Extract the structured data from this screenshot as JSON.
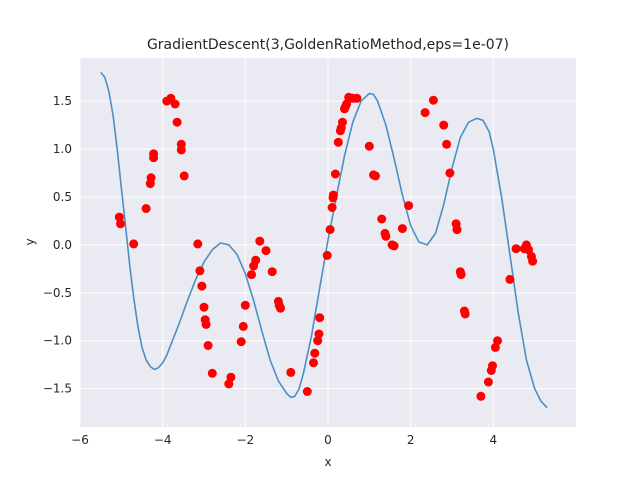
{
  "chart_data": {
    "type": "scatter",
    "title": "GradientDescent(3,GoldenRatioMethod,eps=1e-07)",
    "xlabel": "x",
    "ylabel": "y",
    "xlim": [
      -6,
      6
    ],
    "ylim": [
      -1.9,
      1.95
    ],
    "xticks": [
      -6,
      -4,
      -2,
      0,
      2,
      4
    ],
    "yticks": [
      -1.5,
      -1.0,
      -0.5,
      0.0,
      0.5,
      1.0,
      1.5
    ],
    "xtick_labels": [
      "−6",
      "−4",
      "−2",
      "0",
      "2",
      "4"
    ],
    "ytick_labels": [
      "−1.5",
      "−1.0",
      "−0.5",
      "0.0",
      "0.5",
      "1.0",
      "1.5"
    ],
    "grid": true,
    "background": "#eaeaf2",
    "series": [
      {
        "kind": "points",
        "color": "#ff0000",
        "points": [
          [
            -5.05,
            0.29
          ],
          [
            -5.02,
            0.22
          ],
          [
            -4.7,
            0.01
          ],
          [
            -4.4,
            0.38
          ],
          [
            -4.3,
            0.64
          ],
          [
            -4.28,
            0.7
          ],
          [
            -4.22,
            0.91
          ],
          [
            -4.22,
            0.95
          ],
          [
            -3.9,
            1.5
          ],
          [
            -3.8,
            1.53
          ],
          [
            -3.7,
            1.47
          ],
          [
            -3.65,
            1.28
          ],
          [
            -3.55,
            1.05
          ],
          [
            -3.55,
            0.99
          ],
          [
            -3.48,
            0.72
          ],
          [
            -3.15,
            0.01
          ],
          [
            -3.1,
            -0.27
          ],
          [
            -3.05,
            -0.43
          ],
          [
            -3.0,
            -0.65
          ],
          [
            -2.97,
            -0.78
          ],
          [
            -2.95,
            -0.83
          ],
          [
            -2.9,
            -1.05
          ],
          [
            -2.8,
            -1.34
          ],
          [
            -2.4,
            -1.45
          ],
          [
            -2.35,
            -1.38
          ],
          [
            -2.1,
            -1.01
          ],
          [
            -2.05,
            -0.85
          ],
          [
            -2.0,
            -0.63
          ],
          [
            -1.85,
            -0.31
          ],
          [
            -1.8,
            -0.22
          ],
          [
            -1.75,
            -0.16
          ],
          [
            -1.65,
            0.04
          ],
          [
            -1.5,
            -0.06
          ],
          [
            -1.35,
            -0.28
          ],
          [
            -1.2,
            -0.59
          ],
          [
            -1.18,
            -0.63
          ],
          [
            -1.15,
            -0.66
          ],
          [
            -0.9,
            -1.33
          ],
          [
            -0.5,
            -1.53
          ],
          [
            -0.35,
            -1.23
          ],
          [
            -0.32,
            -1.13
          ],
          [
            -0.25,
            -1.0
          ],
          [
            -0.22,
            -0.93
          ],
          [
            -0.2,
            -0.76
          ],
          [
            -0.02,
            -0.11
          ],
          [
            0.05,
            0.16
          ],
          [
            0.1,
            0.39
          ],
          [
            0.12,
            0.49
          ],
          [
            0.13,
            0.52
          ],
          [
            0.18,
            0.74
          ],
          [
            0.25,
            1.07
          ],
          [
            0.3,
            1.19
          ],
          [
            0.32,
            1.22
          ],
          [
            0.35,
            1.28
          ],
          [
            0.4,
            1.42
          ],
          [
            0.42,
            1.44
          ],
          [
            0.45,
            1.47
          ],
          [
            0.5,
            1.54
          ],
          [
            0.6,
            1.53
          ],
          [
            0.7,
            1.53
          ],
          [
            1.0,
            1.03
          ],
          [
            1.1,
            0.73
          ],
          [
            1.15,
            0.72
          ],
          [
            1.3,
            0.27
          ],
          [
            1.38,
            0.12
          ],
          [
            1.4,
            0.09
          ],
          [
            1.55,
            0.0
          ],
          [
            1.6,
            -0.01
          ],
          [
            1.8,
            0.17
          ],
          [
            1.95,
            0.41
          ],
          [
            2.35,
            1.38
          ],
          [
            2.55,
            1.51
          ],
          [
            2.8,
            1.25
          ],
          [
            2.87,
            1.05
          ],
          [
            2.95,
            0.75
          ],
          [
            3.1,
            0.22
          ],
          [
            3.12,
            0.16
          ],
          [
            3.2,
            -0.28
          ],
          [
            3.22,
            -0.31
          ],
          [
            3.3,
            -0.69
          ],
          [
            3.32,
            -0.72
          ],
          [
            3.7,
            -1.58
          ],
          [
            3.88,
            -1.43
          ],
          [
            3.95,
            -1.31
          ],
          [
            3.98,
            -1.26
          ],
          [
            4.05,
            -1.07
          ],
          [
            4.1,
            -1.0
          ],
          [
            4.4,
            -0.36
          ],
          [
            4.55,
            -0.04
          ],
          [
            4.75,
            -0.04
          ],
          [
            4.8,
            0.0
          ],
          [
            4.85,
            -0.05
          ],
          [
            4.92,
            -0.12
          ],
          [
            4.95,
            -0.17
          ]
        ]
      },
      {
        "kind": "line",
        "color": "#4c8fc4",
        "points": [
          [
            -5.5,
            1.8
          ],
          [
            -5.4,
            1.75
          ],
          [
            -5.3,
            1.6
          ],
          [
            -5.2,
            1.35
          ],
          [
            -5.1,
            1.0
          ],
          [
            -5.0,
            0.6
          ],
          [
            -4.9,
            0.2
          ],
          [
            -4.8,
            -0.2
          ],
          [
            -4.7,
            -0.55
          ],
          [
            -4.6,
            -0.85
          ],
          [
            -4.5,
            -1.07
          ],
          [
            -4.4,
            -1.2
          ],
          [
            -4.3,
            -1.27
          ],
          [
            -4.2,
            -1.3
          ],
          [
            -4.1,
            -1.28
          ],
          [
            -4.0,
            -1.23
          ],
          [
            -3.9,
            -1.15
          ],
          [
            -3.8,
            -1.04
          ],
          [
            -3.6,
            -0.82
          ],
          [
            -3.4,
            -0.58
          ],
          [
            -3.2,
            -0.36
          ],
          [
            -3.0,
            -0.18
          ],
          [
            -2.8,
            -0.05
          ],
          [
            -2.6,
            0.02
          ],
          [
            -2.4,
            0.0
          ],
          [
            -2.2,
            -0.1
          ],
          [
            -2.0,
            -0.3
          ],
          [
            -1.8,
            -0.58
          ],
          [
            -1.6,
            -0.9
          ],
          [
            -1.4,
            -1.2
          ],
          [
            -1.2,
            -1.42
          ],
          [
            -1.0,
            -1.55
          ],
          [
            -0.9,
            -1.59
          ],
          [
            -0.8,
            -1.58
          ],
          [
            -0.7,
            -1.5
          ],
          [
            -0.6,
            -1.35
          ],
          [
            -0.4,
            -0.95
          ],
          [
            -0.2,
            -0.45
          ],
          [
            0.0,
            0.05
          ],
          [
            0.2,
            0.5
          ],
          [
            0.4,
            0.93
          ],
          [
            0.6,
            1.28
          ],
          [
            0.8,
            1.5
          ],
          [
            1.0,
            1.58
          ],
          [
            1.1,
            1.57
          ],
          [
            1.2,
            1.5
          ],
          [
            1.4,
            1.25
          ],
          [
            1.6,
            0.9
          ],
          [
            1.8,
            0.52
          ],
          [
            2.0,
            0.2
          ],
          [
            2.2,
            0.03
          ],
          [
            2.4,
            0.0
          ],
          [
            2.6,
            0.12
          ],
          [
            2.8,
            0.42
          ],
          [
            3.0,
            0.8
          ],
          [
            3.2,
            1.12
          ],
          [
            3.4,
            1.28
          ],
          [
            3.6,
            1.32
          ],
          [
            3.75,
            1.3
          ],
          [
            3.9,
            1.18
          ],
          [
            4.0,
            1.0
          ],
          [
            4.2,
            0.5
          ],
          [
            4.4,
            -0.1
          ],
          [
            4.6,
            -0.7
          ],
          [
            4.8,
            -1.2
          ],
          [
            5.0,
            -1.5
          ],
          [
            5.15,
            -1.63
          ],
          [
            5.3,
            -1.7
          ]
        ]
      }
    ]
  }
}
